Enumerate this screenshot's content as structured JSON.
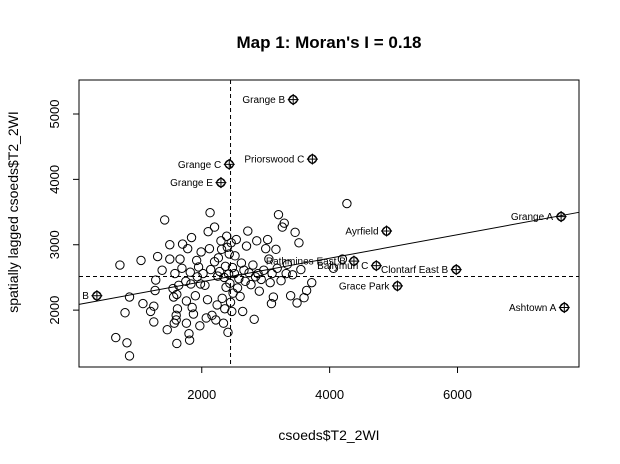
{
  "chart_data": {
    "type": "scatter",
    "title": "Map 1: Moran's I = 0.18",
    "xlabel": "csoeds$T2_2WI",
    "ylabel": "spatially lagged csoeds$T2_2WI",
    "xlim": [
      80,
      7900
    ],
    "ylim": [
      1130,
      5520
    ],
    "xticks": [
      2000,
      4000,
      6000
    ],
    "yticks": [
      2000,
      3000,
      4000,
      5000
    ],
    "x_mean": 2450,
    "y_mean": 2515,
    "regression": {
      "slope": 0.18,
      "intercept": 2074
    },
    "grid": false,
    "legend": "none",
    "points": [
      [
        655,
        1580
      ],
      [
        720,
        2690
      ],
      [
        800,
        1960
      ],
      [
        830,
        1500
      ],
      [
        870,
        2200
      ],
      [
        870,
        1300
      ],
      [
        1050,
        2760
      ],
      [
        1080,
        2100
      ],
      [
        1200,
        1980
      ],
      [
        1250,
        1820
      ],
      [
        1250,
        2060
      ],
      [
        1270,
        2300
      ],
      [
        1280,
        2460
      ],
      [
        1310,
        2820
      ],
      [
        1380,
        2610
      ],
      [
        1420,
        3380
      ],
      [
        1460,
        1700
      ],
      [
        1500,
        2780
      ],
      [
        1500,
        3000
      ],
      [
        1550,
        2330
      ],
      [
        1560,
        2200
      ],
      [
        1570,
        1800
      ],
      [
        1580,
        2560
      ],
      [
        1600,
        1850
      ],
      [
        1600,
        1920
      ],
      [
        1610,
        2240
      ],
      [
        1610,
        1490
      ],
      [
        1620,
        2020
      ],
      [
        1640,
        2380
      ],
      [
        1660,
        2780
      ],
      [
        1690,
        2640
      ],
      [
        1700,
        3010
      ],
      [
        1750,
        2440
      ],
      [
        1760,
        2140
      ],
      [
        1760,
        1800
      ],
      [
        1780,
        2940
      ],
      [
        1800,
        1640
      ],
      [
        1810,
        1540
      ],
      [
        1820,
        2580
      ],
      [
        1830,
        2400
      ],
      [
        1840,
        3110
      ],
      [
        1850,
        2040
      ],
      [
        1870,
        1940
      ],
      [
        1900,
        2220
      ],
      [
        1920,
        2760
      ],
      [
        1930,
        2510
      ],
      [
        1950,
        2660
      ],
      [
        1970,
        1760
      ],
      [
        1980,
        2400
      ],
      [
        1990,
        2890
      ],
      [
        2020,
        2560
      ],
      [
        2050,
        2380
      ],
      [
        2070,
        1880
      ],
      [
        2090,
        2160
      ],
      [
        2100,
        3200
      ],
      [
        2120,
        2940
      ],
      [
        2130,
        3490
      ],
      [
        2140,
        2620
      ],
      [
        2160,
        1920
      ],
      [
        2200,
        2740
      ],
      [
        2200,
        3270
      ],
      [
        2220,
        1850
      ],
      [
        2240,
        2080
      ],
      [
        2250,
        2520
      ],
      [
        2260,
        2800
      ],
      [
        2280,
        2590
      ],
      [
        2300,
        3060
      ],
      [
        2310,
        2930
      ],
      [
        2320,
        2180
      ],
      [
        2340,
        1800
      ],
      [
        2350,
        2500
      ],
      [
        2360,
        2020
      ],
      [
        2370,
        2670
      ],
      [
        2380,
        2350
      ],
      [
        2390,
        3130
      ],
      [
        2400,
        2960
      ],
      [
        2410,
        1660
      ],
      [
        2420,
        2550
      ],
      [
        2430,
        2860
      ],
      [
        2440,
        2410
      ],
      [
        2450,
        2120
      ],
      [
        2460,
        3030
      ],
      [
        2470,
        1980
      ],
      [
        2480,
        2650
      ],
      [
        2490,
        2260
      ],
      [
        2510,
        2560
      ],
      [
        2520,
        2830
      ],
      [
        2540,
        3080
      ],
      [
        2560,
        2340
      ],
      [
        2580,
        2480
      ],
      [
        2600,
        2210
      ],
      [
        2620,
        2720
      ],
      [
        2640,
        1980
      ],
      [
        2660,
        2610
      ],
      [
        2680,
        2440
      ],
      [
        2700,
        2980
      ],
      [
        2720,
        3210
      ],
      [
        2740,
        2570
      ],
      [
        2770,
        2390
      ],
      [
        2800,
        2690
      ],
      [
        2820,
        1860
      ],
      [
        2840,
        2510
      ],
      [
        2860,
        3060
      ],
      [
        2880,
        2560
      ],
      [
        2900,
        2290
      ],
      [
        2930,
        2470
      ],
      [
        2970,
        2610
      ],
      [
        3000,
        2940
      ],
      [
        3030,
        3080
      ],
      [
        3050,
        2780
      ],
      [
        3070,
        2420
      ],
      [
        3090,
        2100
      ],
      [
        3100,
        2560
      ],
      [
        3120,
        2200
      ],
      [
        3160,
        2930
      ],
      [
        3180,
        2640
      ],
      [
        3200,
        3460
      ],
      [
        3240,
        2450
      ],
      [
        3260,
        3270
      ],
      [
        3290,
        3330
      ],
      [
        3320,
        2560
      ],
      [
        3340,
        2700
      ],
      [
        3390,
        2220
      ],
      [
        3420,
        2540
      ],
      [
        3460,
        3190
      ],
      [
        3490,
        2110
      ],
      [
        3520,
        3030
      ],
      [
        3550,
        2620
      ],
      [
        3600,
        2190
      ],
      [
        3640,
        2300
      ],
      [
        3720,
        2420
      ],
      [
        4060,
        2640
      ],
      [
        4200,
        2780
      ],
      [
        4270,
        3630
      ]
    ],
    "labeled_points": [
      {
        "label": "Grange B",
        "x": 3430,
        "y": 5220
      },
      {
        "label": "Priorswood C",
        "x": 3730,
        "y": 4310
      },
      {
        "label": "Grange C",
        "x": 2430,
        "y": 4230
      },
      {
        "label": "Grange E",
        "x": 2300,
        "y": 3950
      },
      {
        "label": "Ayrfield",
        "x": 4890,
        "y": 3210
      },
      {
        "label": "Grange A",
        "x": 7620,
        "y": 3430
      },
      {
        "label": "Rathmines East B",
        "x": 4380,
        "y": 2750
      },
      {
        "label": "Ballymun C",
        "x": 4730,
        "y": 2680
      },
      {
        "label": "Clontarf East B",
        "x": 5980,
        "y": 2620
      },
      {
        "label": "Grace Park",
        "x": 5060,
        "y": 2370
      },
      {
        "label": "B",
        "x": 360,
        "y": 2220
      },
      {
        "label": "Ashtown A",
        "x": 7670,
        "y": 2040
      }
    ]
  }
}
